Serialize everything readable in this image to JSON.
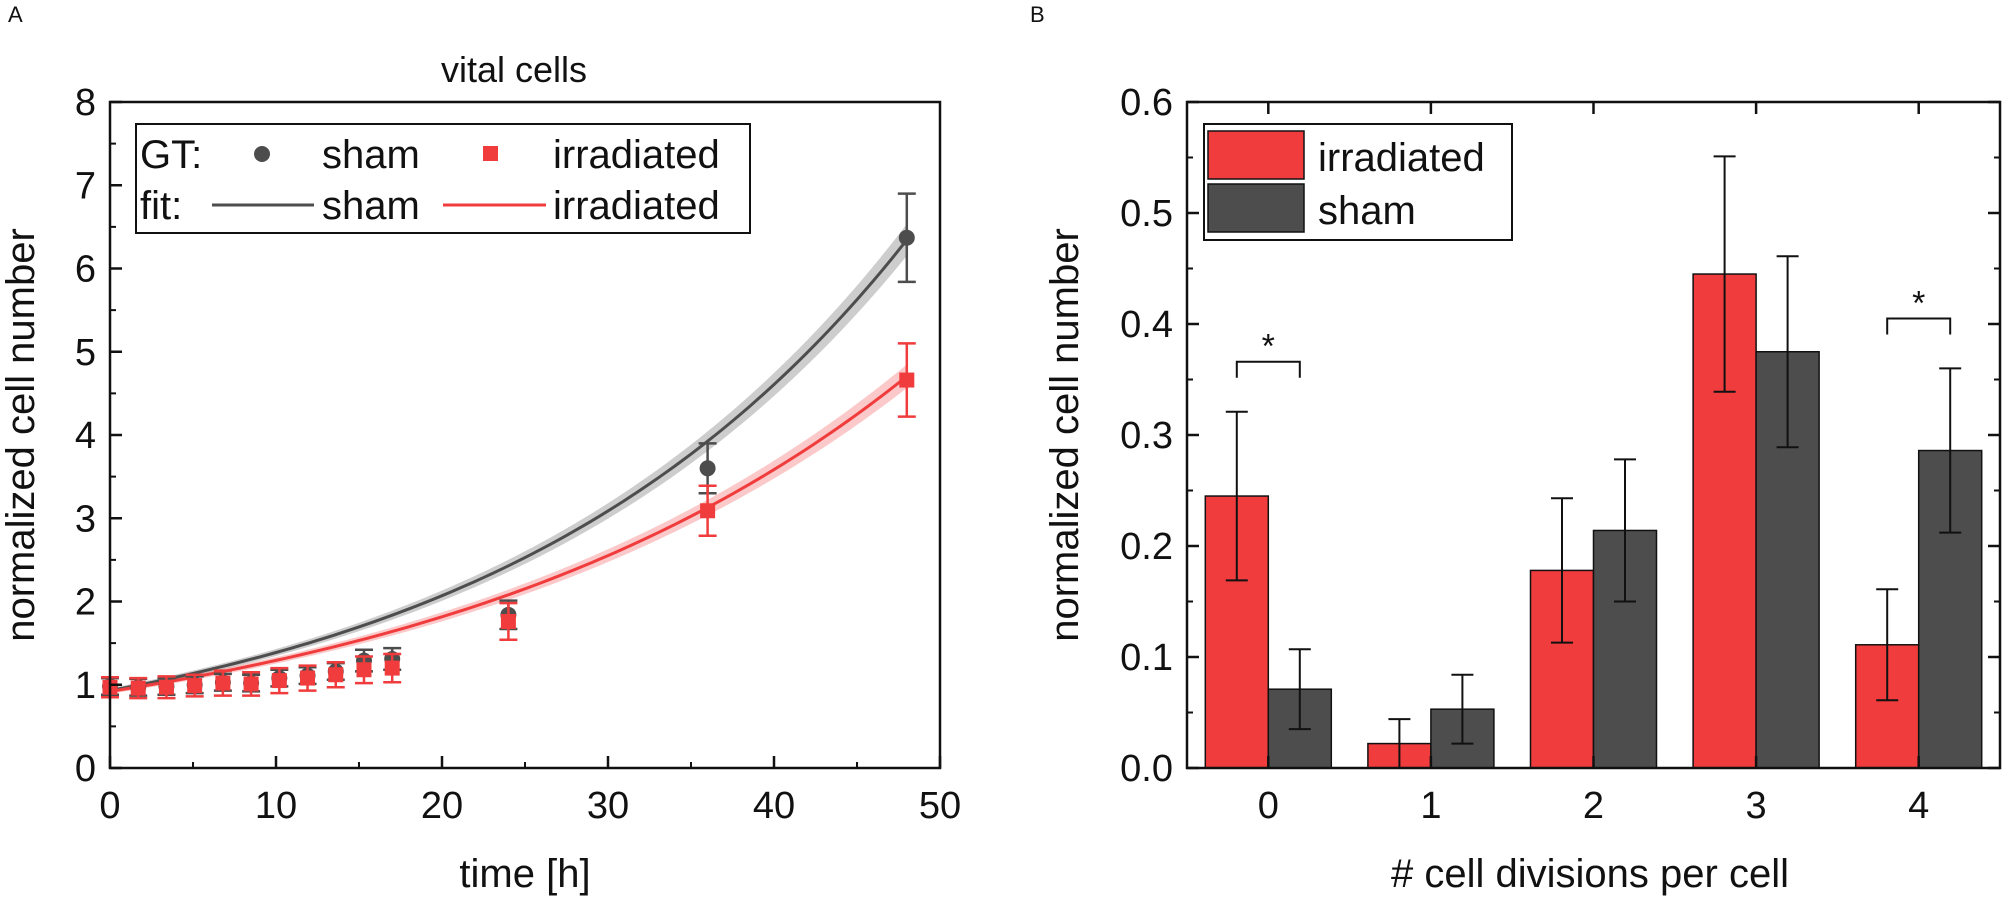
{
  "chart_data": [
    {
      "panel": "A",
      "type": "scatter",
      "title": "vital cells",
      "xlabel": "time [h]",
      "ylabel": "normalized cell number",
      "xlim": [
        0,
        50
      ],
      "ylim": [
        0,
        8
      ],
      "xticks": [
        0,
        10,
        20,
        30,
        40,
        50
      ],
      "yticks": [
        0,
        1,
        2,
        3,
        4,
        5,
        6,
        7,
        8
      ],
      "legend": {
        "position": "top-left",
        "row1_prefix": "GT:",
        "row2_prefix": "fit:",
        "entries": {
          "gt_sham": "sham",
          "gt_irradiated": "irradiated",
          "fit_sham": "sham",
          "fit_irradiated": "irradiated"
        }
      },
      "series": [
        {
          "name": "sham",
          "kind": "GT",
          "marker": "circle",
          "color": "#4d4d4d",
          "x": [
            0,
            1.7,
            3.4,
            5.1,
            6.8,
            8.5,
            10.2,
            11.9,
            13.6,
            15.3,
            17.0,
            24,
            36,
            48
          ],
          "y": [
            0.98,
            0.97,
            0.98,
            1.0,
            1.03,
            1.02,
            1.08,
            1.11,
            1.16,
            1.29,
            1.31,
            1.84,
            3.6,
            6.37
          ],
          "err": [
            0.1,
            0.1,
            0.1,
            0.1,
            0.1,
            0.1,
            0.1,
            0.1,
            0.1,
            0.13,
            0.13,
            0.17,
            0.3,
            0.53
          ]
        },
        {
          "name": "irradiated",
          "kind": "GT",
          "marker": "square",
          "color": "#f03c3c",
          "x": [
            0,
            1.7,
            3.4,
            5.1,
            6.8,
            8.5,
            10.2,
            11.9,
            13.6,
            15.3,
            17.0,
            24,
            36,
            48
          ],
          "y": [
            0.97,
            0.96,
            0.97,
            0.99,
            1.02,
            1.01,
            1.05,
            1.08,
            1.12,
            1.18,
            1.2,
            1.76,
            3.09,
            4.66
          ],
          "err": [
            0.12,
            0.12,
            0.13,
            0.13,
            0.15,
            0.14,
            0.15,
            0.15,
            0.15,
            0.16,
            0.17,
            0.22,
            0.3,
            0.44
          ]
        },
        {
          "name": "sham",
          "kind": "fit",
          "model": "exponential",
          "y0": 0.93,
          "rate": 0.04,
          "band": 0.06,
          "color": "#4d4d4d"
        },
        {
          "name": "irradiated",
          "kind": "fit",
          "model": "exponential",
          "y0": 0.92,
          "rate": 0.034,
          "band": 0.06,
          "color": "#f03c3c"
        }
      ]
    },
    {
      "panel": "B",
      "type": "bar",
      "xlabel": "# cell divisions per cell",
      "ylabel": "normalized cell number",
      "ylim": [
        0,
        0.6
      ],
      "yticks": [
        "0.0",
        "0.1",
        "0.2",
        "0.3",
        "0.4",
        "0.5",
        "0.6"
      ],
      "categories": [
        "0",
        "1",
        "2",
        "3",
        "4"
      ],
      "legend": {
        "position": "top-left",
        "entries": [
          "irradiated",
          "sham"
        ]
      },
      "series": [
        {
          "name": "irradiated",
          "color": "#f03c3c",
          "values": [
            0.245,
            0.022,
            0.178,
            0.445,
            0.111
          ],
          "err": [
            0.076,
            0.022,
            0.065,
            0.106,
            0.05
          ]
        },
        {
          "name": "sham",
          "color": "#4d4d4d",
          "values": [
            0.071,
            0.053,
            0.214,
            0.375,
            0.286
          ],
          "err": [
            0.036,
            0.031,
            0.064,
            0.086,
            0.074
          ]
        }
      ],
      "significance": [
        {
          "category": "0",
          "label": "*"
        },
        {
          "category": "4",
          "label": "*"
        }
      ]
    }
  ]
}
